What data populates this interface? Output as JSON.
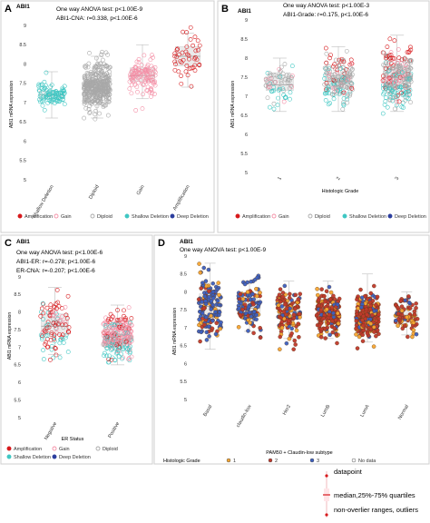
{
  "colors": {
    "amplification": "#d7191c",
    "gain": "#f48fa6",
    "diploid": "#a8a8a8",
    "shallow_deletion": "#3fc7c3",
    "deep_deletion": "#2c3e9e",
    "grade1": "#f7a531",
    "grade2": "#c0392b",
    "grade3": "#3b5fc0",
    "nodata": "#ffffff"
  },
  "panels": {
    "A": {
      "letter": "A",
      "gene": "ABI1",
      "stat1": "One way ANOVA test: p<1.00E-9",
      "stat2": "ABI1-CNA: r=0.338, p<1.00E-6",
      "ylabel": "ABI1 mRNA expression",
      "yticks": [
        "5",
        "5.5",
        "6",
        "6.5",
        "7",
        "7.5",
        "8",
        "8.5",
        "9"
      ],
      "legend": [
        "Amplification",
        "Gain",
        "Diploid",
        "Shallow Deletion",
        "Deep Deletion"
      ]
    },
    "B": {
      "letter": "B",
      "gene": "ABI1",
      "stat1": "One way ANOVA test: p<1.00E-3",
      "stat2": "ABI1-Grade: r=0.175, p<1.00E-6",
      "ylabel": "ABI1 mRNA expression",
      "xlabel": "Histologic Grade",
      "yticks": [
        "5",
        "5.5",
        "6",
        "6.5",
        "7",
        "7.5",
        "8",
        "8.5",
        "9"
      ],
      "legend": [
        "Amplification",
        "Gain",
        "Diploid",
        "Shallow Deletion",
        "Deep Deletion"
      ]
    },
    "C": {
      "letter": "C",
      "gene": "ABI1",
      "stat1": "One way ANOVA test: p<1.00E-6",
      "stat2": "ABI1-ER: r=-0.278; p<1.00E-6",
      "stat3": "ER-CNA: r=-0.207; p<1.00E-6",
      "ylabel": "ABI1 mRNA expression",
      "xlabel": "ER Status",
      "yticks": [
        "5",
        "5.5",
        "6",
        "6.5",
        "7",
        "7.5",
        "8",
        "8.5",
        "9"
      ],
      "legend": [
        "Amplification",
        "Gain",
        "Diploid",
        "Shallow Deletion",
        "Deep Deletion"
      ]
    },
    "D": {
      "letter": "D",
      "gene": "ABI1",
      "stat1": "One way ANOVA test: p<1.00E-9",
      "ylabel": "ABI1 mRNA expression",
      "xlabel": "PAM50 + Claudin-low subtype",
      "yticks": [
        "5",
        "5.5",
        "6",
        "6.5",
        "7",
        "7.5",
        "8",
        "8.5",
        "9"
      ],
      "legend_title": "Histologic Grade",
      "legend": [
        "1",
        "2",
        "3",
        "No data"
      ]
    }
  },
  "key": {
    "datapoint": "datapoint",
    "median": "median,25%-75% quartiles",
    "ranges": "non-overlier ranges, outliers"
  },
  "chart_data": [
    {
      "panel": "A",
      "type": "box",
      "categories": [
        "Shallow Deletion",
        "Diploid",
        "Gain",
        "Amplification"
      ],
      "median": [
        7.2,
        7.4,
        7.7,
        8.2
      ],
      "q1": [
        7.1,
        7.2,
        7.55,
        7.95
      ],
      "q3": [
        7.3,
        7.6,
        7.9,
        8.45
      ],
      "whisker_low": [
        6.6,
        6.6,
        7.1,
        7.4
      ],
      "whisker_high": [
        7.8,
        8.2,
        8.5,
        8.8
      ],
      "ylim": [
        5,
        9
      ],
      "point_class": [
        "shallow_deletion",
        "diploid",
        "gain",
        "amplification"
      ],
      "n_points": [
        90,
        380,
        110,
        45
      ],
      "legend_position": "bottom"
    },
    {
      "panel": "B",
      "type": "box",
      "categories": [
        "1",
        "2",
        "3"
      ],
      "median": [
        7.3,
        7.4,
        7.5
      ],
      "q1": [
        7.15,
        7.2,
        7.25
      ],
      "q3": [
        7.5,
        7.6,
        7.75
      ],
      "whisker_low": [
        6.6,
        6.6,
        6.6
      ],
      "whisker_high": [
        8.0,
        8.3,
        8.6
      ],
      "ylim": [
        5,
        9
      ],
      "point_mix": [
        [
          "diploid",
          "shallow_deletion",
          "gain"
        ],
        [
          "diploid",
          "shallow_deletion",
          "gain",
          "amplification"
        ],
        [
          "diploid",
          "shallow_deletion",
          "gain",
          "amplification"
        ]
      ],
      "n_points": [
        70,
        170,
        260
      ],
      "legend_position": "bottom"
    },
    {
      "panel": "C",
      "type": "box",
      "categories": [
        "Negative",
        "Positive"
      ],
      "median": [
        7.6,
        7.35
      ],
      "q1": [
        7.35,
        7.1
      ],
      "q3": [
        7.95,
        7.55
      ],
      "whisker_low": [
        6.8,
        6.5
      ],
      "whisker_high": [
        8.7,
        8.2
      ],
      "ylim": [
        5,
        9
      ],
      "point_mix": [
        [
          "amplification",
          "gain",
          "diploid",
          "shallow_deletion"
        ],
        [
          "gain",
          "diploid",
          "shallow_deletion",
          "amplification"
        ]
      ],
      "n_points": [
        110,
        260
      ],
      "legend_position": "bottom"
    },
    {
      "panel": "D",
      "type": "box",
      "categories": [
        "Basal",
        "claudin-low",
        "Her2",
        "LumB",
        "LumA",
        "Normal"
      ],
      "median": [
        7.6,
        7.55,
        7.45,
        7.35,
        7.3,
        7.35
      ],
      "q1": [
        7.35,
        7.35,
        7.25,
        7.15,
        7.1,
        7.15
      ],
      "q3": [
        7.95,
        7.8,
        7.7,
        7.55,
        7.5,
        7.55
      ],
      "whisker_low": [
        6.4,
        6.9,
        6.7,
        6.7,
        6.6,
        6.8
      ],
      "whisker_high": [
        8.8,
        8.3,
        8.3,
        8.3,
        8.5,
        8.0
      ],
      "ylim": [
        5,
        9
      ],
      "point_mix": [
        [
          "grade3",
          "grade2",
          "grade1"
        ],
        [
          "grade3",
          "grade2",
          "grade1"
        ],
        [
          "grade2",
          "grade3",
          "grade1"
        ],
        [
          "grade2",
          "grade1",
          "grade3"
        ],
        [
          "grade2",
          "grade1",
          "grade3"
        ],
        [
          "grade2",
          "grade1",
          "grade3"
        ]
      ],
      "n_points": [
        150,
        120,
        140,
        190,
        260,
        80
      ],
      "legend_position": "bottom"
    }
  ]
}
